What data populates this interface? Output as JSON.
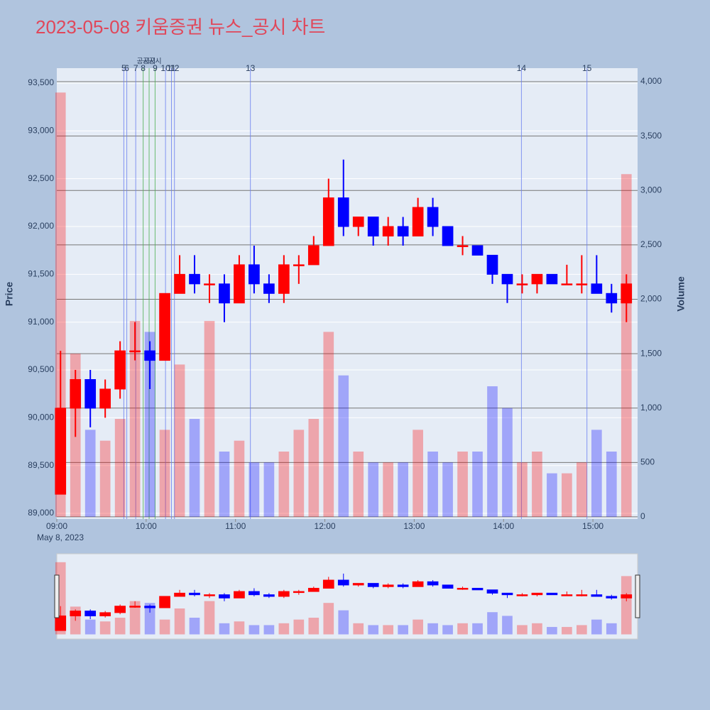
{
  "chart_data": {
    "type": "candlestick",
    "title": "2023-05-08 키움증권 뉴스_공시 차트",
    "ylabel": "Price",
    "y2label": "Volume",
    "x_date_label": "May 8, 2023",
    "increasing_color": "#ff0000",
    "decreasing_color": "#0000ff",
    "grid": true,
    "rangeslider": true,
    "xlim": [
      "09:00",
      "15:30"
    ],
    "xticks": [
      "09:00",
      "10:00",
      "11:00",
      "12:00",
      "13:00",
      "14:00",
      "15:00"
    ],
    "ylim": [
      88941,
      93656
    ],
    "yticks": [
      {
        "value": 89000,
        "label": "89,000"
      },
      {
        "value": 89500,
        "label": "89,500"
      },
      {
        "value": 90000,
        "label": "90,000"
      },
      {
        "value": 90500,
        "label": "90,500"
      },
      {
        "value": 91000,
        "label": "91,000"
      },
      {
        "value": 91500,
        "label": "91,500"
      },
      {
        "value": 92000,
        "label": "92,000"
      },
      {
        "value": 92500,
        "label": "92,500"
      },
      {
        "value": 93000,
        "label": "93,000"
      },
      {
        "value": 93500,
        "label": "93,500"
      }
    ],
    "y2lim": [
      -20,
      4124
    ],
    "y2ticks": [
      0,
      500,
      {
        "value": 1000,
        "label": "1,000"
      },
      {
        "value": 1500,
        "label": "1,500"
      },
      {
        "value": 2000,
        "label": "2,000"
      },
      {
        "value": 2500,
        "label": "2,500"
      },
      {
        "value": 3000,
        "label": "3,000"
      },
      {
        "value": 3500,
        "label": "3,500"
      },
      {
        "value": 4000,
        "label": "4,000"
      }
    ],
    "x": [
      "09:00",
      "09:10",
      "09:20",
      "09:30",
      "09:40",
      "09:50",
      "10:00",
      "10:10",
      "10:20",
      "10:30",
      "10:40",
      "10:50",
      "11:00",
      "11:10",
      "11:20",
      "11:30",
      "11:40",
      "11:50",
      "12:00",
      "12:10",
      "12:20",
      "12:30",
      "12:40",
      "12:50",
      "13:00",
      "13:10",
      "13:20",
      "13:30",
      "13:40",
      "13:50",
      "14:00",
      "14:10",
      "14:20",
      "14:30",
      "14:40",
      "14:50",
      "15:00",
      "15:10",
      "15:20"
    ],
    "open": [
      89200,
      90100,
      90400,
      90100,
      90300,
      90700,
      90700,
      90600,
      91300,
      91500,
      91400,
      91400,
      91200,
      91600,
      91400,
      91300,
      91600,
      91600,
      91800,
      92300,
      92000,
      92100,
      91900,
      92000,
      91900,
      92200,
      92000,
      91800,
      91800,
      91700,
      91500,
      91400,
      91400,
      91500,
      91400,
      91400,
      91400,
      91300,
      91200
    ],
    "high": [
      90700,
      90500,
      90500,
      90400,
      90800,
      91000,
      90800,
      91300,
      91700,
      91700,
      91500,
      91500,
      91700,
      91800,
      91500,
      91700,
      91700,
      91900,
      92500,
      92700,
      92100,
      92100,
      92100,
      92100,
      92300,
      92300,
      92000,
      91900,
      91800,
      91700,
      91500,
      91500,
      91500,
      91500,
      91600,
      91700,
      91700,
      91400,
      91500
    ],
    "low": [
      89200,
      89800,
      89900,
      90000,
      90200,
      90600,
      90300,
      90600,
      91300,
      91300,
      91200,
      91000,
      91200,
      91300,
      91200,
      91200,
      91400,
      91600,
      91800,
      91900,
      91900,
      91800,
      91800,
      91800,
      91900,
      91900,
      91800,
      91700,
      91700,
      91400,
      91200,
      91300,
      91300,
      91400,
      91400,
      91300,
      91300,
      91100,
      91000
    ],
    "close": [
      90100,
      90400,
      90100,
      90300,
      90700,
      90700,
      90600,
      91300,
      91500,
      91400,
      91400,
      91200,
      91600,
      91400,
      91300,
      91600,
      91600,
      91800,
      92300,
      92000,
      92100,
      91900,
      92000,
      91900,
      92200,
      92000,
      91800,
      91800,
      91700,
      91500,
      91400,
      91400,
      91500,
      91400,
      91400,
      91400,
      91300,
      91200,
      91400
    ],
    "volume": [
      3900,
      1500,
      800,
      700,
      900,
      1800,
      1700,
      800,
      1400,
      900,
      1800,
      600,
      700,
      500,
      500,
      600,
      800,
      900,
      1700,
      1300,
      600,
      500,
      500,
      500,
      800,
      600,
      500,
      600,
      600,
      1200,
      1000,
      500,
      600,
      400,
      400,
      500,
      800,
      600,
      3150
    ],
    "news_color": "#6a7ff0",
    "disclosure_color": "#4caf50",
    "news": [
      {
        "time": "09:45",
        "label": "5"
      },
      {
        "time": "09:47",
        "label": "6"
      },
      {
        "time": "09:53",
        "label": "7"
      },
      {
        "time": "10:13",
        "label": "10"
      },
      {
        "time": "10:17",
        "label": "11"
      },
      {
        "time": "10:19",
        "label": "12"
      },
      {
        "time": "11:10",
        "label": "13"
      },
      {
        "time": "14:12",
        "label": "14"
      },
      {
        "time": "14:56",
        "label": "15"
      }
    ],
    "disclosures": [
      {
        "time": "09:58",
        "label": "8",
        "tag": "공시"
      },
      {
        "time": "10:02",
        "tag": "공시"
      },
      {
        "time": "10:06",
        "label": "9",
        "tag": "공시"
      }
    ]
  }
}
